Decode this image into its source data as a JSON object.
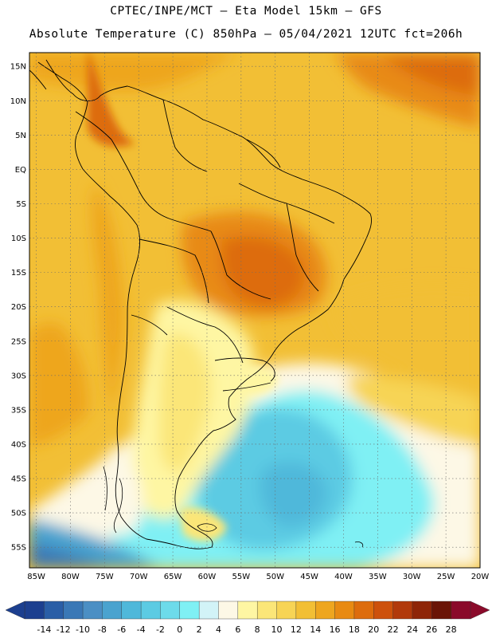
{
  "header": {
    "line1": "CPTEC/INPE/MCT –  Eta Model 15km – GFS",
    "line2": "Absolute Temperature (C) 850hPa – 05/04/2021 12UTC fct=206h"
  },
  "map": {
    "lat_labels": [
      "15N",
      "10N",
      "5N",
      "EQ",
      "5S",
      "10S",
      "15S",
      "20S",
      "25S",
      "30S",
      "35S",
      "40S",
      "45S",
      "50S",
      "55S"
    ],
    "lon_labels": [
      "85W",
      "80W",
      "75W",
      "70W",
      "65W",
      "60W",
      "55W",
      "50W",
      "45W",
      "40W",
      "35W",
      "30W",
      "25W",
      "20W"
    ],
    "lat_range": [
      -58,
      17
    ],
    "lon_range": [
      -86,
      -20
    ],
    "grid": true
  },
  "colorbar": {
    "labels": [
      "-14",
      "-12",
      "-10",
      "-8",
      "-6",
      "-4",
      "-2",
      "0",
      "2",
      "4",
      "6",
      "8",
      "10",
      "12",
      "14",
      "16",
      "18",
      "20",
      "22",
      "24",
      "26",
      "28"
    ],
    "colors": [
      "#1c3f8f",
      "#2a5ea6",
      "#3a78b6",
      "#4b8fc4",
      "#4aa3cf",
      "#4fb8da",
      "#5ccbe3",
      "#6ddbea",
      "#7ff0f4",
      "#d2f3f7",
      "#fdf8e6",
      "#fef6a3",
      "#fbe678",
      "#f7d455",
      "#f2bf35",
      "#eea61f",
      "#e88a12",
      "#dd6c0d",
      "#cd510c",
      "#b1390b",
      "#8e2508",
      "#6a1406",
      "#8a0a2a"
    ],
    "low_arrow_color": "#1c3f8f",
    "high_arrow_color": "#8a0a2a"
  }
}
